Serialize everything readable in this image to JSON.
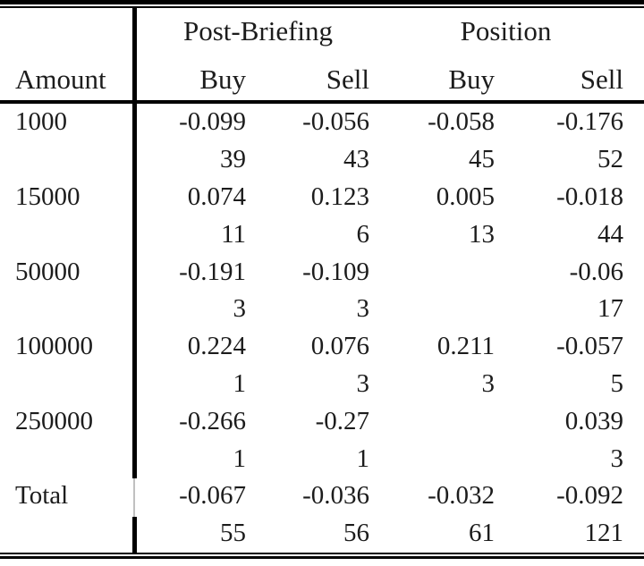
{
  "table": {
    "group_headers": [
      {
        "label": "Post-Briefing"
      },
      {
        "label": "Position"
      }
    ],
    "column_headers": [
      "Amount",
      "Buy",
      "Sell",
      "Buy",
      "Sell"
    ],
    "rows": [
      {
        "amount": "1000",
        "values": [
          "-0.099",
          "-0.056",
          "-0.058",
          "-0.176"
        ],
        "counts": [
          "39",
          "43",
          "45",
          "52"
        ]
      },
      {
        "amount": "15000",
        "values": [
          "0.074",
          "0.123",
          "0.005",
          "-0.018"
        ],
        "counts": [
          "11",
          "6",
          "13",
          "44"
        ]
      },
      {
        "amount": "50000",
        "values": [
          "-0.191",
          "-0.109",
          "",
          "-0.06"
        ],
        "counts": [
          "3",
          "3",
          "",
          "17"
        ]
      },
      {
        "amount": "100000",
        "values": [
          "0.224",
          "0.076",
          "0.211",
          "-0.057"
        ],
        "counts": [
          "1",
          "3",
          "3",
          "5"
        ]
      },
      {
        "amount": "250000",
        "values": [
          "-0.266",
          "-0.27",
          "",
          "0.039"
        ],
        "counts": [
          "1",
          "1",
          "",
          "3"
        ]
      },
      {
        "amount": "Total",
        "values": [
          "-0.067",
          "-0.036",
          "-0.032",
          "-0.092"
        ],
        "counts": [
          "55",
          "56",
          "61",
          "121"
        ]
      }
    ]
  },
  "chart_data": {
    "type": "table",
    "title": "",
    "stub_column": "Amount",
    "row_labels": [
      "1000",
      "15000",
      "50000",
      "100000",
      "250000",
      "Total"
    ],
    "series": [
      {
        "name": "Post-Briefing Buy",
        "values": [
          -0.099,
          0.074,
          -0.191,
          0.224,
          -0.266,
          -0.067
        ],
        "counts": [
          39,
          11,
          3,
          1,
          1,
          55
        ]
      },
      {
        "name": "Post-Briefing Sell",
        "values": [
          -0.056,
          0.123,
          -0.109,
          0.076,
          -0.27,
          -0.036
        ],
        "counts": [
          43,
          6,
          3,
          3,
          1,
          56
        ]
      },
      {
        "name": "Position Buy",
        "values": [
          -0.058,
          0.005,
          null,
          0.211,
          null,
          -0.032
        ],
        "counts": [
          45,
          13,
          null,
          3,
          null,
          61
        ]
      },
      {
        "name": "Position Sell",
        "values": [
          -0.176,
          -0.018,
          -0.06,
          -0.057,
          0.039,
          -0.092
        ],
        "counts": [
          52,
          44,
          17,
          5,
          3,
          121
        ]
      }
    ],
    "layout": {
      "top_rule": "double",
      "bottom_rule": "double",
      "header_rule": "thick-single",
      "vertical_divider_after_stub": true
    }
  },
  "colors": {
    "background": "#ffffff",
    "text": "#1c1c1c",
    "rule": "#000000",
    "divider_gap": "#c0c0c0"
  }
}
